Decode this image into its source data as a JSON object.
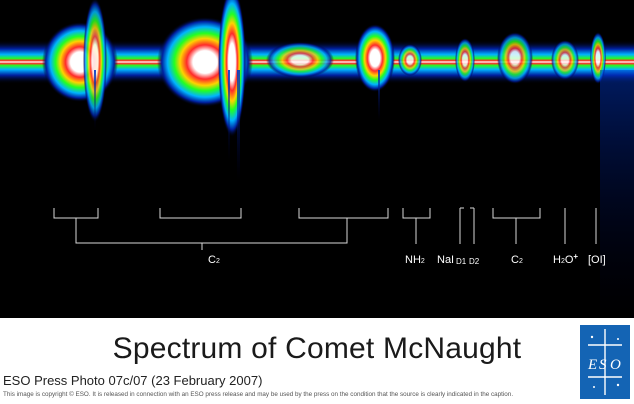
{
  "title": "Spectrum of Comet McNaught",
  "photo_id": "ESO Press Photo 07c/07 (23 February 2007)",
  "copyright": "This image is copyright © ESO. It is released in connection with an ESO press release and may be used by the press on the condition that the source is clearly indicated in the caption.",
  "labels": {
    "c2_main": "C",
    "c2_main_sub": "2",
    "nh2": "NH",
    "nh2_sub": "2",
    "nai": "NaI",
    "d1": "D1",
    "d2": "D2",
    "c2_right": "C",
    "c2_right_sub": "2",
    "h2o": "H",
    "h2o_sub": "2",
    "h2o_o": "O",
    "h2o_sup": "+",
    "oi": "[OI]"
  },
  "logo": {
    "text": "ESO",
    "color": "#1464b4"
  }
}
